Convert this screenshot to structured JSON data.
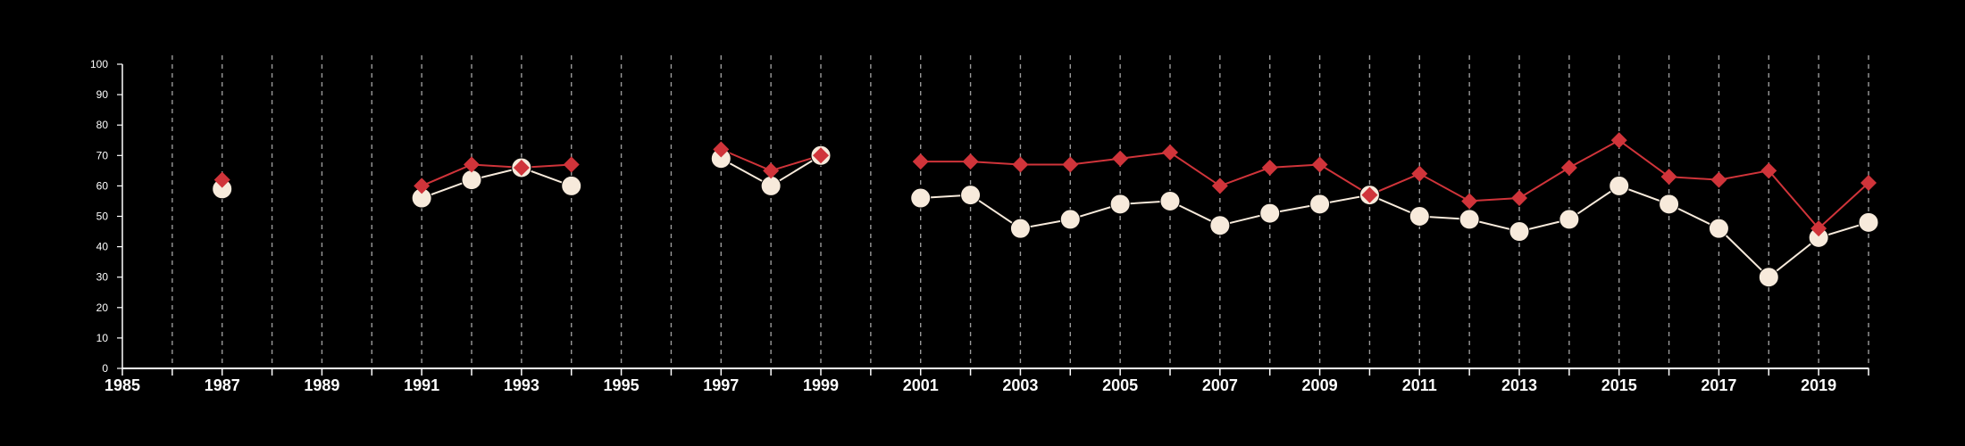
{
  "chart_data": {
    "type": "line",
    "title": "",
    "xlabel": "",
    "ylabel": "",
    "xlim": [
      1985,
      2020
    ],
    "ylim": [
      0,
      100
    ],
    "x_ticks": [
      "1985",
      "1987",
      "1989",
      "1991",
      "1993",
      "1995",
      "1997",
      "1999",
      "2001",
      "2003",
      "2005",
      "2007",
      "2009",
      "2011",
      "2013",
      "2015",
      "2017",
      "2019"
    ],
    "y_ticks": [
      "0",
      "10",
      "20",
      "30",
      "40",
      "50",
      "60",
      "70",
      "80",
      "90",
      "100"
    ],
    "grid": "vertical dashed lines at every year",
    "legend": "none",
    "series": [
      {
        "color": "#d0343a",
        "marker": "diamond",
        "points": [
          {
            "x": 1987,
            "y": 62
          },
          {
            "x": 1991,
            "y": 60
          },
          {
            "x": 1992,
            "y": 67
          },
          {
            "x": 1993,
            "y": 66
          },
          {
            "x": 1994,
            "y": 67
          },
          {
            "x": 1997,
            "y": 72
          },
          {
            "x": 1998,
            "y": 65
          },
          {
            "x": 1999,
            "y": 70
          },
          {
            "x": 2001,
            "y": 68
          },
          {
            "x": 2002,
            "y": 68
          },
          {
            "x": 2003,
            "y": 67
          },
          {
            "x": 2004,
            "y": 67
          },
          {
            "x": 2005,
            "y": 69
          },
          {
            "x": 2006,
            "y": 71
          },
          {
            "x": 2007,
            "y": 60
          },
          {
            "x": 2008,
            "y": 66
          },
          {
            "x": 2009,
            "y": 67
          },
          {
            "x": 2010,
            "y": 57
          },
          {
            "x": 2011,
            "y": 64
          },
          {
            "x": 2012,
            "y": 55
          },
          {
            "x": 2013,
            "y": 56
          },
          {
            "x": 2014,
            "y": 66
          },
          {
            "x": 2015,
            "y": 75
          },
          {
            "x": 2016,
            "y": 63
          },
          {
            "x": 2017,
            "y": 62
          },
          {
            "x": 2018,
            "y": 65
          },
          {
            "x": 2019,
            "y": 46
          },
          {
            "x": 2020,
            "y": 61
          }
        ]
      },
      {
        "color": "#f7eadb",
        "marker": "circle",
        "points": [
          {
            "x": 1987,
            "y": 59
          },
          {
            "x": 1991,
            "y": 56
          },
          {
            "x": 1992,
            "y": 62
          },
          {
            "x": 1993,
            "y": 66
          },
          {
            "x": 1994,
            "y": 60
          },
          {
            "x": 1997,
            "y": 69
          },
          {
            "x": 1998,
            "y": 60
          },
          {
            "x": 1999,
            "y": 70
          },
          {
            "x": 2001,
            "y": 56
          },
          {
            "x": 2002,
            "y": 57
          },
          {
            "x": 2003,
            "y": 46
          },
          {
            "x": 2004,
            "y": 49
          },
          {
            "x": 2005,
            "y": 54
          },
          {
            "x": 2006,
            "y": 55
          },
          {
            "x": 2007,
            "y": 47
          },
          {
            "x": 2008,
            "y": 51
          },
          {
            "x": 2009,
            "y": 54
          },
          {
            "x": 2010,
            "y": 57
          },
          {
            "x": 2011,
            "y": 50
          },
          {
            "x": 2012,
            "y": 49
          },
          {
            "x": 2013,
            "y": 45
          },
          {
            "x": 2014,
            "y": 49
          },
          {
            "x": 2015,
            "y": 60
          },
          {
            "x": 2016,
            "y": 54
          },
          {
            "x": 2017,
            "y": 46
          },
          {
            "x": 2018,
            "y": 30
          },
          {
            "x": 2019,
            "y": 43
          },
          {
            "x": 2020,
            "y": 48
          }
        ]
      }
    ],
    "colors": {
      "background": "#000000",
      "axis": "#ffffff",
      "grid": "#9a9a9a"
    }
  }
}
